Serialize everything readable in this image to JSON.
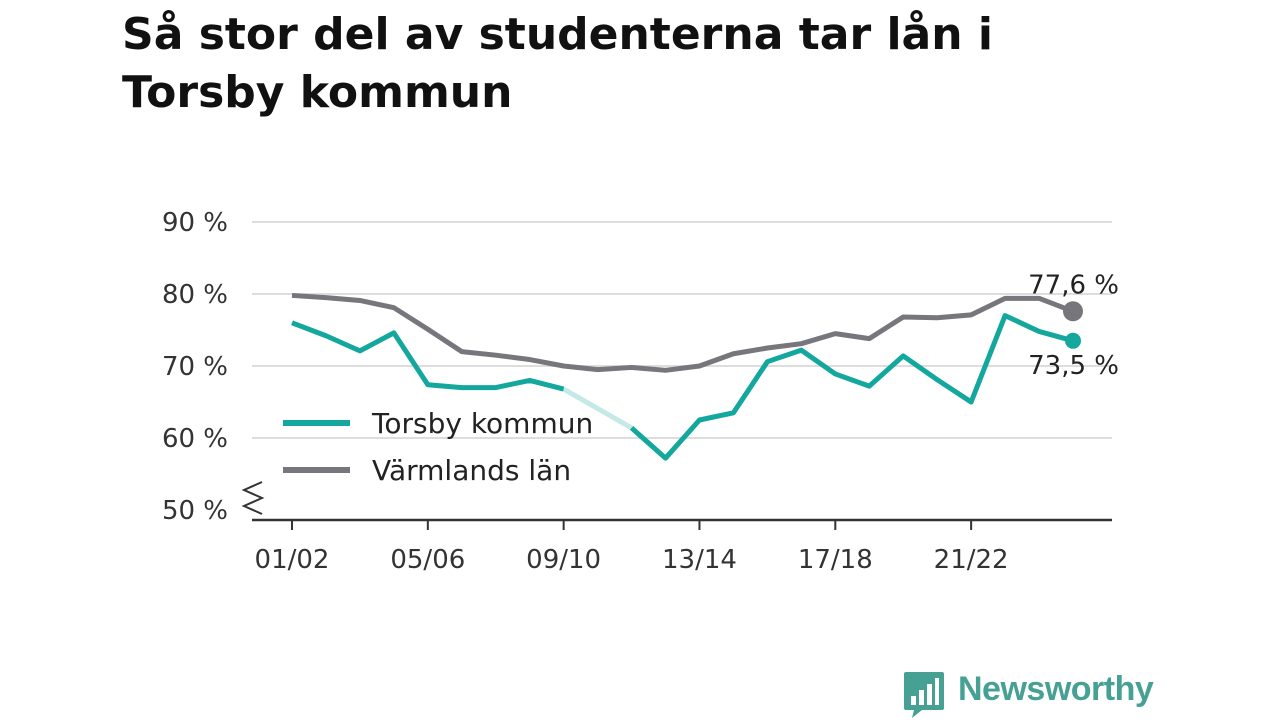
{
  "title": "Så stor del av studenterna tar lån i Torsby kommun",
  "brand": {
    "name": "Newsworthy",
    "icon": "bar-chart-logo-icon"
  },
  "colors": {
    "torsby": "#13a79d",
    "varmland": "#77767d",
    "grid": "#dddddd",
    "axis": "#333333"
  },
  "chart_data": {
    "type": "line",
    "x": [
      "01/02",
      "02/03",
      "03/04",
      "04/05",
      "05/06",
      "06/07",
      "07/08",
      "08/09",
      "09/10",
      "10/11",
      "11/12",
      "12/13",
      "13/14",
      "14/15",
      "15/16",
      "16/17",
      "17/18",
      "18/19",
      "19/20",
      "20/21",
      "21/22",
      "22/23",
      "23/24",
      "24/25"
    ],
    "x_tick_labels": [
      "01/02",
      "05/06",
      "09/10",
      "13/14",
      "17/18",
      "21/22"
    ],
    "y_tick_labels": [
      "90 %",
      "80 %",
      "70 %",
      "60 %",
      "50 %"
    ],
    "y_ticks": [
      90,
      80,
      70,
      60,
      50
    ],
    "ylim": [
      50,
      90
    ],
    "y_axis_break": true,
    "grid": true,
    "legend_position": "bottom-left",
    "series": [
      {
        "name": "Torsby kommun",
        "color": "#13a79d",
        "values": [
          76.0,
          74.2,
          72.1,
          74.6,
          67.4,
          67.0,
          67.0,
          68.0,
          66.8,
          null,
          61.4,
          57.2,
          62.5,
          63.5,
          70.6,
          72.2,
          68.9,
          67.2,
          71.4,
          68.1,
          65.0,
          77.0,
          74.8,
          73.5
        ],
        "last_label": "73,5 %"
      },
      {
        "name": "Värmlands län",
        "color": "#77767d",
        "values": [
          79.8,
          79.5,
          79.1,
          78.1,
          75.1,
          72.0,
          71.5,
          70.9,
          70.0,
          69.5,
          69.8,
          69.4,
          70.0,
          71.7,
          72.5,
          73.1,
          74.5,
          73.8,
          76.8,
          76.7,
          77.1,
          79.4,
          79.4,
          77.6
        ],
        "last_label": "77,6 %"
      }
    ]
  }
}
